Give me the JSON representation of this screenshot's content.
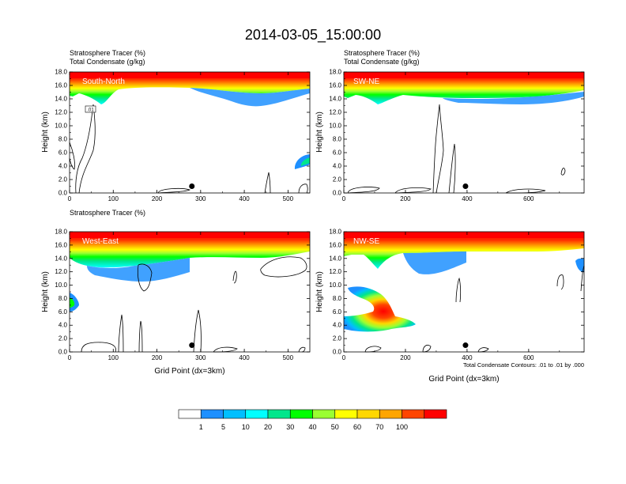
{
  "figure": {
    "title": "2014-03-05_15:00:00",
    "contour_note": "Total Condensate Contours: .01 to .01 by .000",
    "x_axis_label": "Grid Point (dx=3km)"
  },
  "colorbar": {
    "labels": [
      "1",
      "5",
      "10",
      "20",
      "30",
      "40",
      "50",
      "60",
      "70",
      "100"
    ],
    "colors": [
      "#ffffff",
      "#1e90ff",
      "#00bfff",
      "#00ffff",
      "#00e68c",
      "#00ff00",
      "#9aff32",
      "#ffff00",
      "#ffd700",
      "#ffa500",
      "#ff4500",
      "#ff0000"
    ]
  },
  "chart_data": [
    {
      "type": "heatmap",
      "title_line1": "Stratosphere Tracer   (%)",
      "title_line2": "Total Condensate   (g/kg)",
      "panel_label": "South-North",
      "ylabel": "Height (km)",
      "xlabel": "",
      "xlim": [
        0,
        550
      ],
      "ylim": [
        0,
        18
      ],
      "x_ticks": [
        "0",
        "100",
        "200",
        "300",
        "400",
        "500"
      ],
      "y_ticks": [
        "0.0",
        "2.0",
        "4.0",
        "6.0",
        "8.0",
        "10.0",
        "12.0",
        "14.0",
        "16.0",
        "18.0"
      ],
      "marker": {
        "x": 280,
        "y": 1.0
      },
      "contour_labels": [
        ".01"
      ]
    },
    {
      "type": "heatmap",
      "title_line1": "Stratosphere Tracer   (%)",
      "title_line2": "Total Condensate   (g/kg)",
      "panel_label": "SW-NE",
      "ylabel": "Height (km)",
      "xlabel": "",
      "xlim": [
        0,
        780
      ],
      "ylim": [
        0,
        18
      ],
      "x_ticks": [
        "0",
        "200",
        "400",
        "600"
      ],
      "y_ticks": [
        "0.0",
        "2.0",
        "4.0",
        "6.0",
        "8.0",
        "10.0",
        "12.0",
        "14.0",
        "16.0",
        "18.0"
      ],
      "marker": {
        "x": 395,
        "y": 1.0
      }
    },
    {
      "type": "heatmap",
      "title_line1": "Stratosphere Tracer   (%)",
      "title_line2": "",
      "panel_label": "West-East",
      "ylabel": "Height (km)",
      "xlabel": "Grid Point (dx=3km)",
      "xlim": [
        0,
        550
      ],
      "ylim": [
        0,
        18
      ],
      "x_ticks": [
        "0",
        "100",
        "200",
        "300",
        "400",
        "500"
      ],
      "y_ticks": [
        "0.0",
        "2.0",
        "4.0",
        "6.0",
        "8.0",
        "10.0",
        "12.0",
        "14.0",
        "16.0",
        "18.0"
      ],
      "marker": {
        "x": 280,
        "y": 1.0
      }
    },
    {
      "type": "heatmap",
      "title_line1": "",
      "title_line2": "",
      "panel_label": "NW-SE",
      "ylabel": "Height (km)",
      "xlabel": "Grid Point (dx=3km)",
      "xlim": [
        0,
        780
      ],
      "ylim": [
        0,
        18
      ],
      "x_ticks": [
        "0",
        "200",
        "400",
        "600"
      ],
      "y_ticks": [
        "0.0",
        "2.0",
        "4.0",
        "6.0",
        "8.0",
        "10.0",
        "12.0",
        "14.0",
        "16.0",
        "18.0"
      ],
      "marker": {
        "x": 395,
        "y": 1.0
      }
    }
  ]
}
